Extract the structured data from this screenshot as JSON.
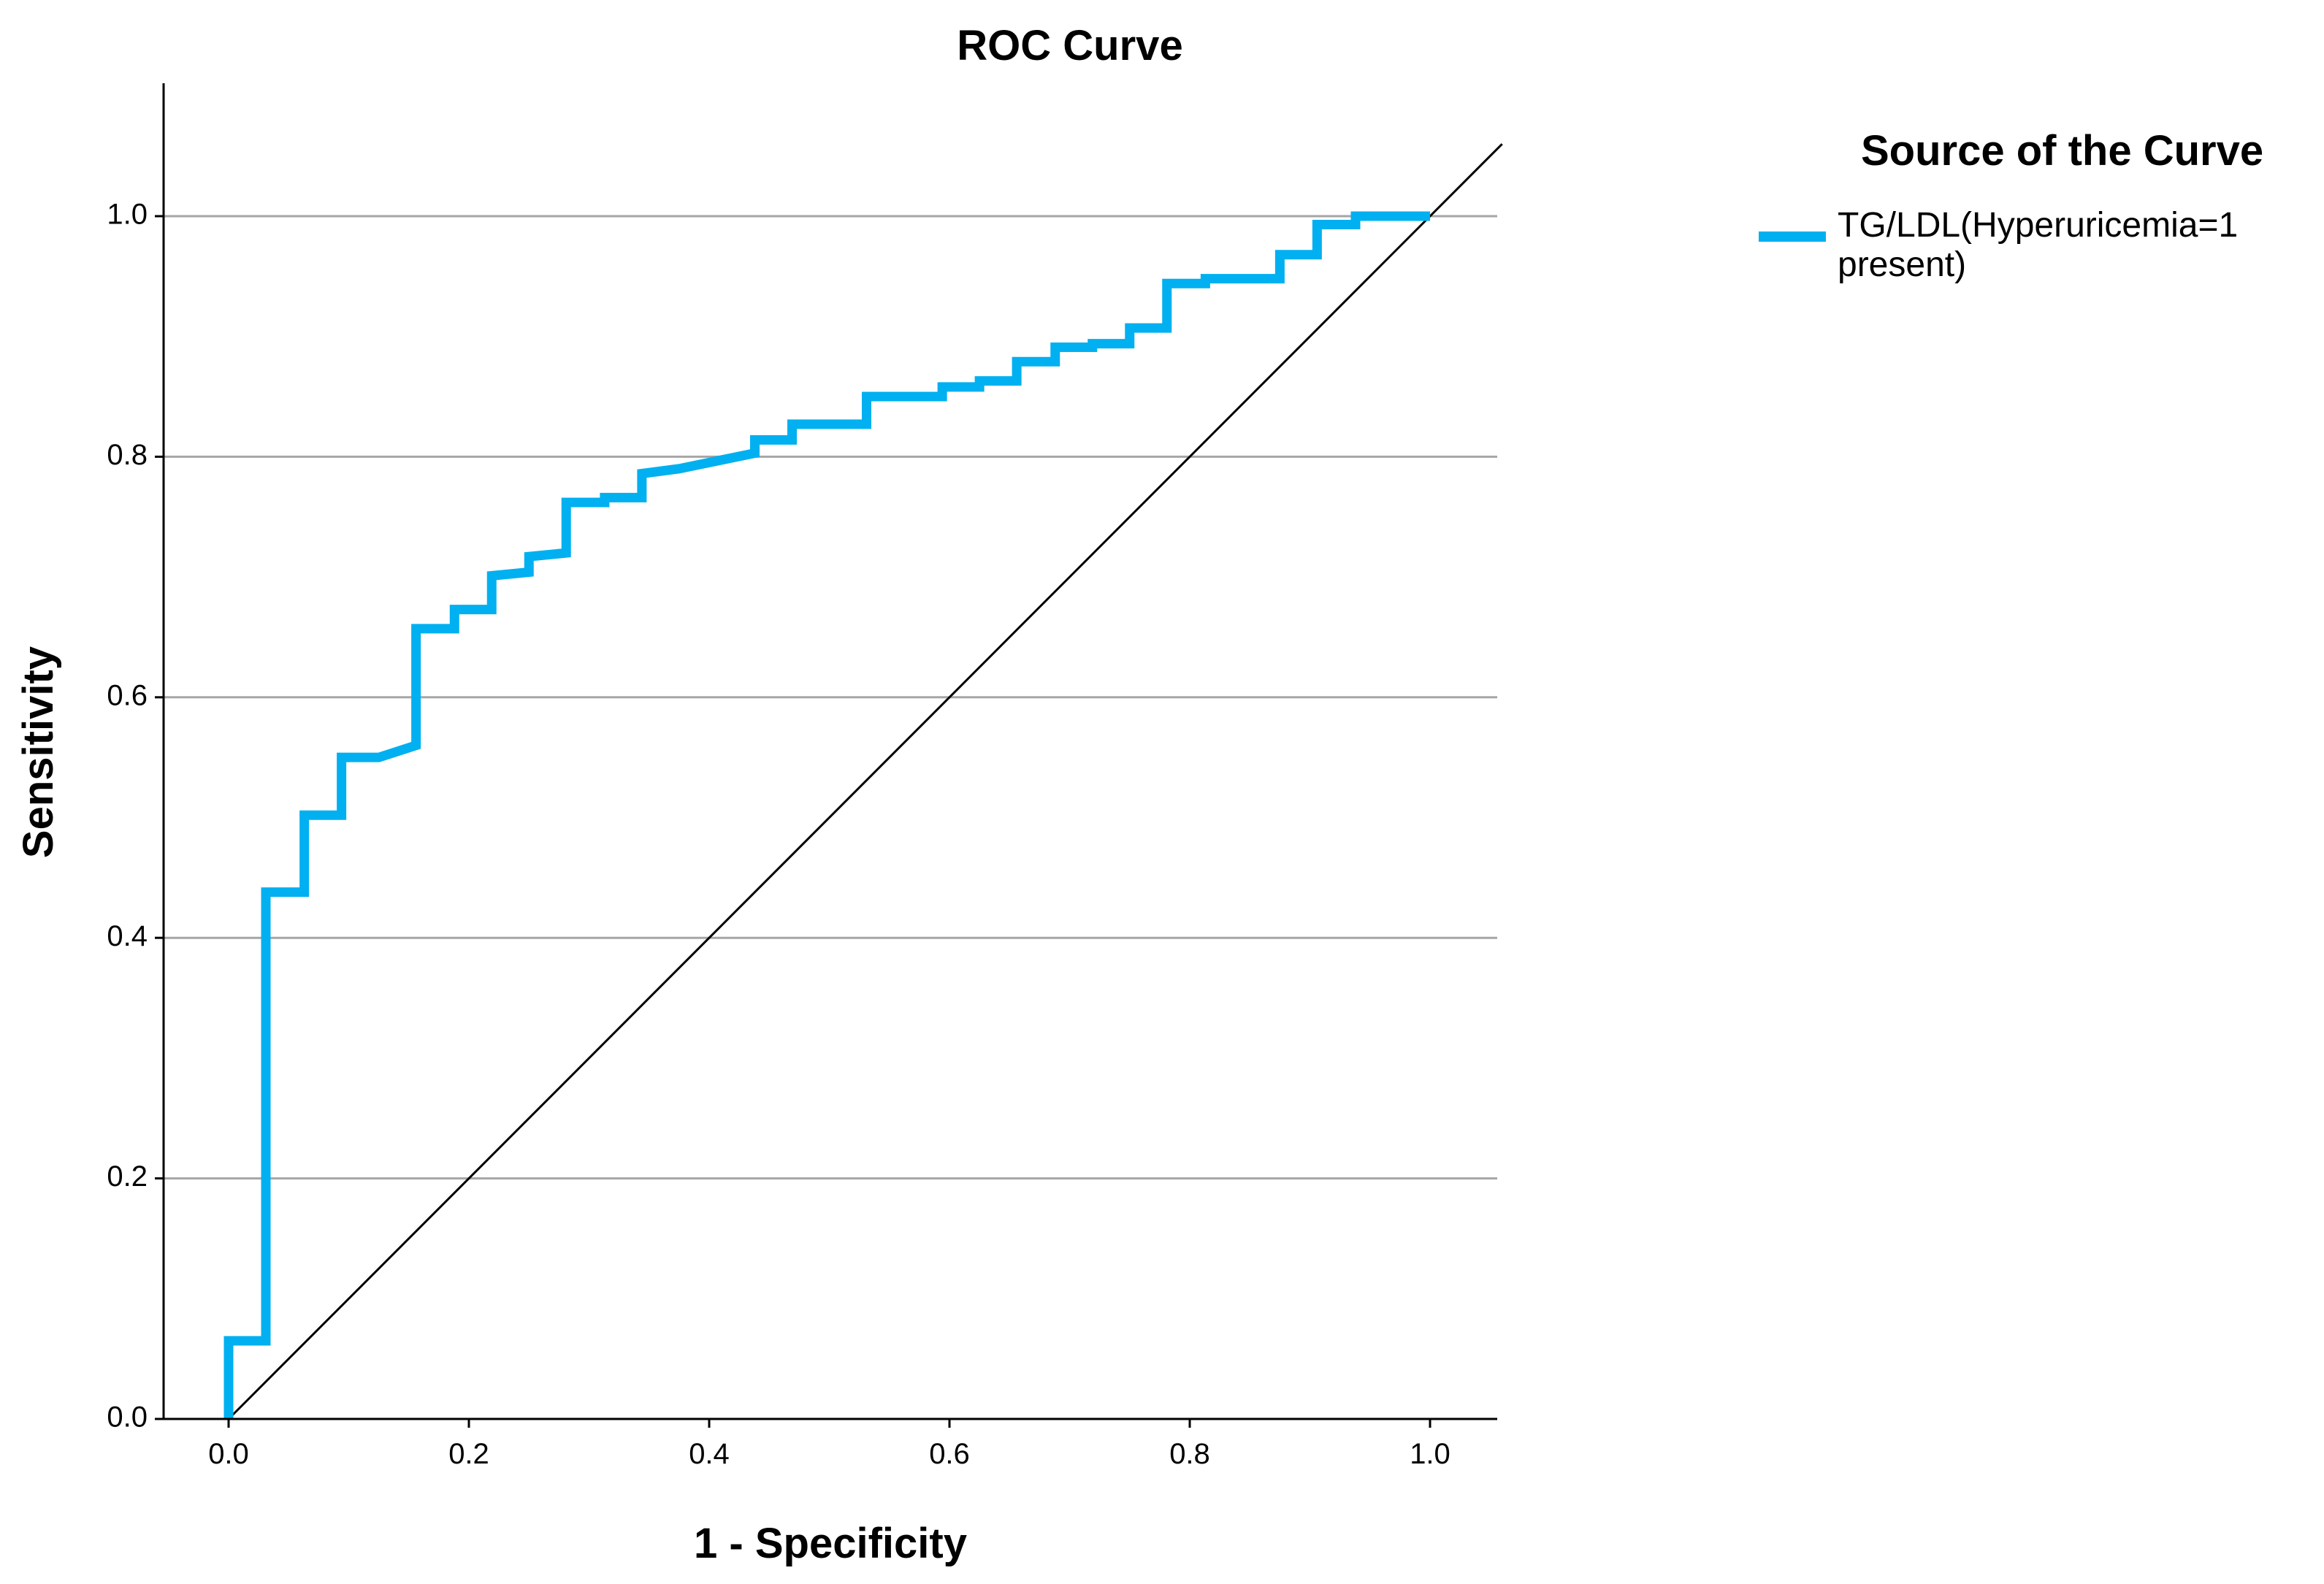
{
  "chart_data": {
    "type": "line",
    "title": "ROC Curve",
    "xlabel": "1 - Specificity",
    "ylabel": "Sensitivity",
    "xlim": [
      -0.11,
      1.06
    ],
    "ylim": [
      0,
      1.11
    ],
    "xticks": [
      "0.0",
      "0.2",
      "0.4",
      "0.6",
      "0.8",
      "1.0"
    ],
    "yticks": [
      "0.0",
      "0.2",
      "0.4",
      "0.6",
      "0.8",
      "1.0"
    ],
    "grid": "horizontal",
    "legend": {
      "title": "Source of the Curve",
      "placement": "top-right",
      "entries": [
        {
          "line1": "TG/LDL(Hyperuricemia=1",
          "line2": "present)",
          "color": "#00b0f0"
        }
      ]
    },
    "series": [
      {
        "name": "TG/LDL(Hyperuricemia=1 present)",
        "color": "#00b0f0",
        "x": [
          0.0,
          0.0,
          0.031,
          0.031,
          0.063,
          0.063,
          0.094,
          0.094,
          0.125,
          0.156,
          0.156,
          0.188,
          0.188,
          0.219,
          0.219,
          0.25,
          0.25,
          0.281,
          0.281,
          0.313,
          0.313,
          0.344,
          0.344,
          0.375,
          0.438,
          0.438,
          0.469,
          0.469,
          0.531,
          0.531,
          0.594,
          0.594,
          0.625,
          0.625,
          0.656,
          0.656,
          0.688,
          0.688,
          0.719,
          0.719,
          0.75,
          0.75,
          0.781,
          0.781,
          0.813,
          0.813,
          0.875,
          0.875,
          0.906,
          0.906,
          0.938,
          0.938,
          1.0
        ],
        "y": [
          0.0,
          0.065,
          0.065,
          0.438,
          0.438,
          0.502,
          0.502,
          0.55,
          0.55,
          0.56,
          0.657,
          0.657,
          0.673,
          0.673,
          0.701,
          0.704,
          0.717,
          0.72,
          0.762,
          0.762,
          0.766,
          0.766,
          0.786,
          0.79,
          0.803,
          0.814,
          0.814,
          0.827,
          0.827,
          0.85,
          0.85,
          0.858,
          0.858,
          0.863,
          0.863,
          0.879,
          0.879,
          0.891,
          0.891,
          0.894,
          0.894,
          0.907,
          0.907,
          0.944,
          0.944,
          0.948,
          0.948,
          0.968,
          0.968,
          0.993,
          0.993,
          1.0,
          1.0
        ]
      }
    ],
    "reference_line": {
      "x": [
        0,
        1.06
      ],
      "y": [
        0,
        1.06
      ],
      "color": "#000000"
    }
  }
}
